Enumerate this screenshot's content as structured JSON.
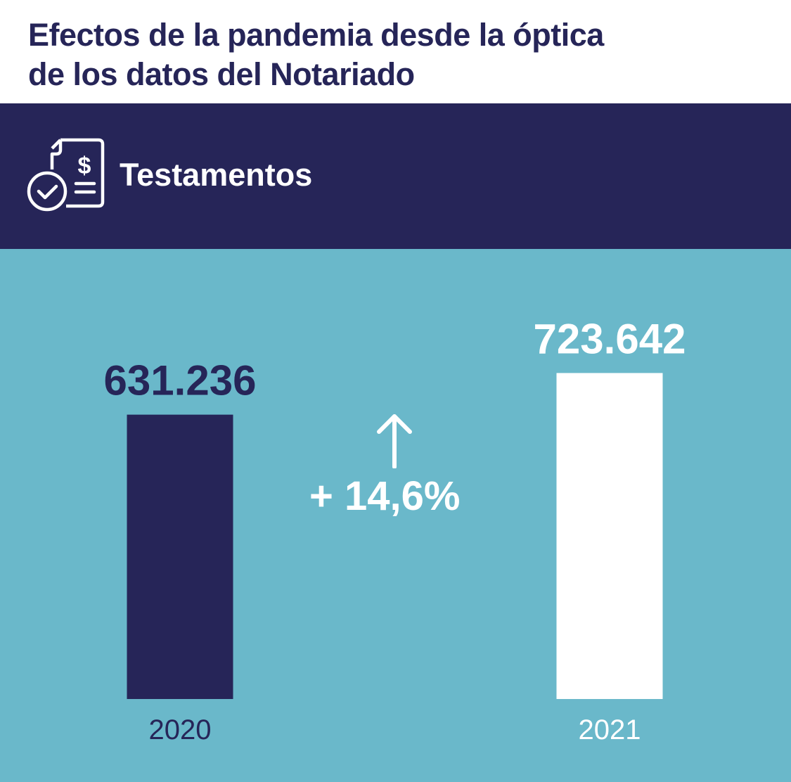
{
  "header": {
    "title_line1": "Efectos de la pandemia desde la óptica",
    "title_line2": "de los datos del Notariado"
  },
  "banner": {
    "label": "Testamentos",
    "icon": "testament-document-icon"
  },
  "change": {
    "label": "+ 14,6%",
    "icon": "arrow-up-icon"
  },
  "colors": {
    "navy": "#262558",
    "teal": "#6ab8ca",
    "white": "#ffffff"
  },
  "chart_data": {
    "type": "bar",
    "categories": [
      "2020",
      "2021"
    ],
    "values": [
      631236,
      723642
    ],
    "value_labels": [
      "631.236",
      "723.642"
    ],
    "bar_colors": [
      "#262558",
      "#ffffff"
    ],
    "value_label_colors": [
      "#262558",
      "#ffffff"
    ],
    "category_label_colors": [
      "#262558",
      "#ffffff"
    ],
    "grid": false,
    "axes": false
  }
}
